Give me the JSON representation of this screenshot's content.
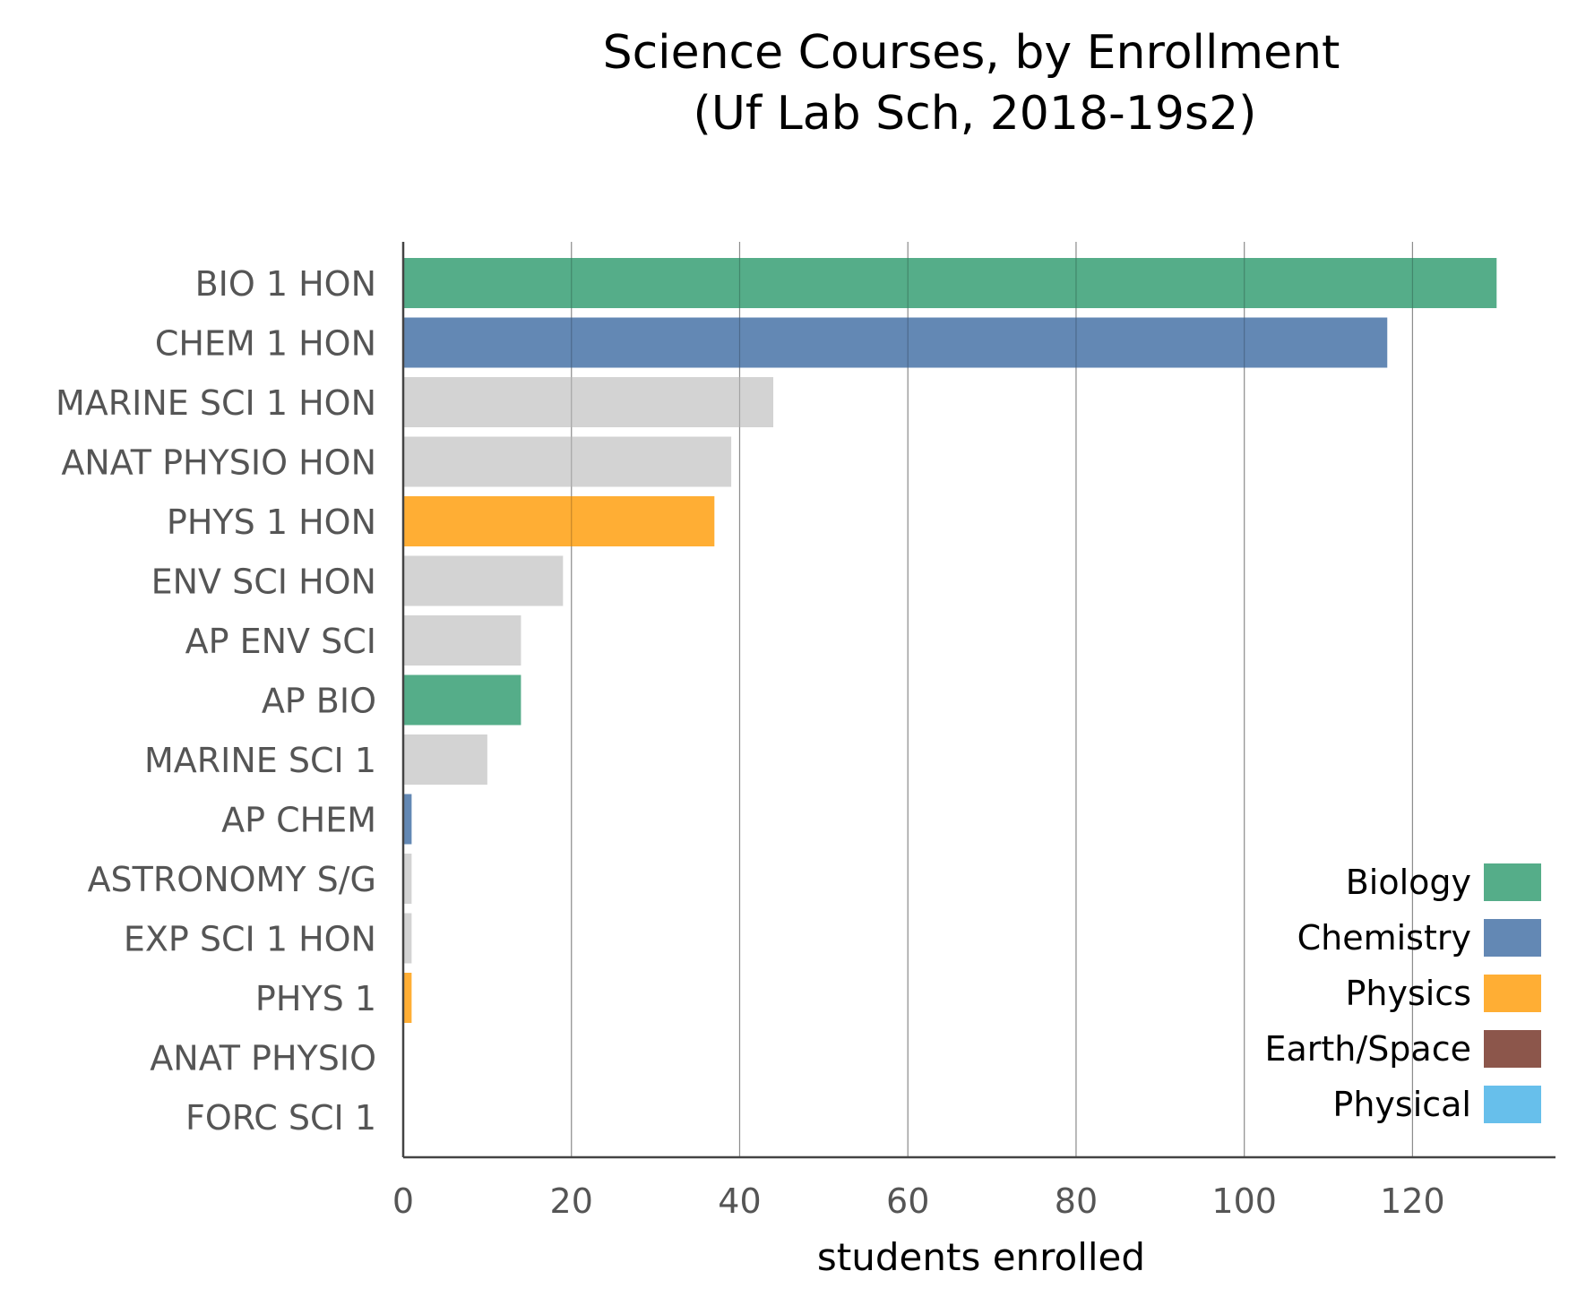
{
  "chart_data": {
    "type": "bar",
    "orientation": "horizontal",
    "title": "Science Courses, by Enrollment\n(Uf Lab Sch, 2018-19s2)",
    "xlabel": "students enrolled",
    "ylabel": "",
    "xlim": [
      0,
      137
    ],
    "xticks": [
      0,
      20,
      40,
      60,
      80,
      100,
      120
    ],
    "grid": "vertical",
    "legend_position": "bottom-right",
    "categories": [
      "BIO 1 HON",
      "CHEM 1 HON",
      "MARINE SCI 1 HON",
      "ANAT PHYSIO HON",
      "PHYS 1 HON",
      "ENV SCI HON",
      "AP ENV SCI",
      "AP BIO",
      "MARINE SCI 1",
      "AP CHEM",
      "ASTRONOMY S/G",
      "EXP SCI 1 HON",
      "PHYS 1",
      "ANAT PHYSIO",
      "FORC SCI 1"
    ],
    "values": [
      130,
      117,
      44,
      39,
      37,
      19,
      14,
      14,
      10,
      1,
      1,
      1,
      1,
      0,
      0
    ],
    "bar_colors": [
      "#55ad89",
      "#6388b4",
      "#d3d3d3",
      "#d3d3d3",
      "#ffae34",
      "#d3d3d3",
      "#d3d3d3",
      "#55ad89",
      "#d3d3d3",
      "#6388b4",
      "#d3d3d3",
      "#d3d3d3",
      "#ffae34",
      "#d3d3d3",
      "#d3d3d3"
    ],
    "legend": [
      {
        "label": "Biology",
        "color": "#55ad89"
      },
      {
        "label": "Chemistry",
        "color": "#6388b4"
      },
      {
        "label": "Physics",
        "color": "#ffae34"
      },
      {
        "label": "Earth/Space",
        "color": "#8c564b"
      },
      {
        "label": "Physical",
        "color": "#67bfeb"
      }
    ]
  }
}
